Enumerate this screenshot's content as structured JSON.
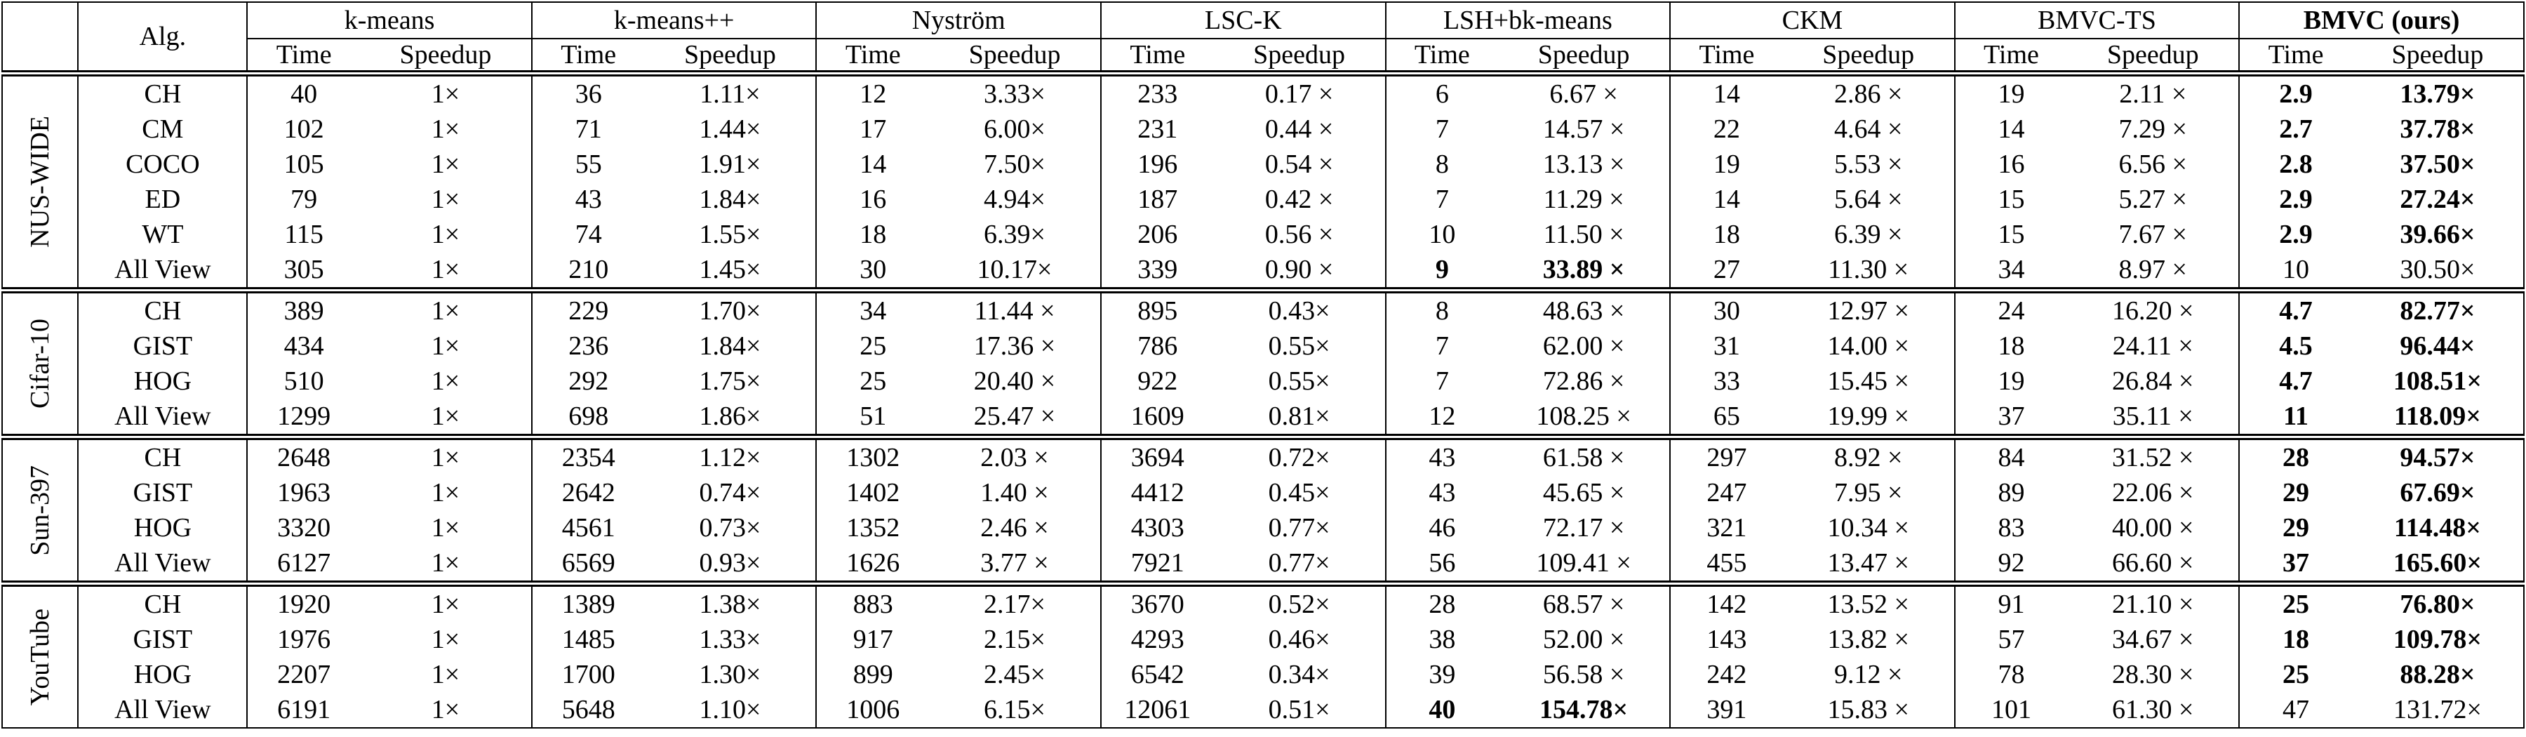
{
  "header": {
    "alg": "Alg.",
    "methods": [
      {
        "name": "k-means",
        "cols": [
          "Time",
          "Speedup"
        ]
      },
      {
        "name": "k-means++",
        "cols": [
          "Time",
          "Speedup"
        ]
      },
      {
        "name": "Nyström",
        "cols": [
          "Time",
          "Speedup"
        ]
      },
      {
        "name": "LSC-K",
        "cols": [
          "Time",
          "Speedup"
        ]
      },
      {
        "name": "LSH+bk-means",
        "cols": [
          "Time",
          "Speedup"
        ]
      },
      {
        "name": "CKM",
        "cols": [
          "Time",
          "Speedup"
        ]
      },
      {
        "name": "BMVC-TS",
        "cols": [
          "Time",
          "Speedup"
        ]
      },
      {
        "name": "BMVC (ours)",
        "cols": [
          "Time",
          "Speedup"
        ]
      }
    ]
  },
  "groups": [
    {
      "name": "NUS-WIDE",
      "rows": [
        [
          "CH",
          40,
          "1×",
          36,
          "1.11×",
          12,
          "3.33×",
          233,
          "0.17 ×",
          6,
          "6.67 ×",
          14,
          "2.86 ×",
          19,
          "2.11 ×",
          2.9,
          "13.79×"
        ],
        [
          "CM",
          102,
          "1×",
          71,
          "1.44×",
          17,
          "6.00×",
          231,
          "0.44 ×",
          7,
          "14.57 ×",
          22,
          "4.64 ×",
          14,
          "7.29 ×",
          2.7,
          "37.78×"
        ],
        [
          "COCO",
          105,
          "1×",
          55,
          "1.91×",
          14,
          "7.50×",
          196,
          "0.54 ×",
          8,
          "13.13 ×",
          19,
          "5.53 ×",
          16,
          "6.56 ×",
          2.8,
          "37.50×"
        ],
        [
          "ED",
          79,
          "1×",
          43,
          "1.84×",
          16,
          "4.94×",
          187,
          "0.42 ×",
          7,
          "11.29 ×",
          14,
          "5.64 ×",
          15,
          "5.27 ×",
          2.9,
          "27.24×"
        ],
        [
          "WT",
          115,
          "1×",
          74,
          "1.55×",
          18,
          "6.39×",
          206,
          "0.56 ×",
          10,
          "11.50 ×",
          18,
          "6.39 ×",
          15,
          "7.67 ×",
          2.9,
          "39.66×"
        ],
        [
          "All View",
          305,
          "1×",
          210,
          "1.45×",
          30,
          "10.17×",
          339,
          "0.90 ×",
          9,
          "33.89 ×",
          27,
          "11.30 ×",
          34,
          "8.97 ×",
          10,
          "30.50×"
        ]
      ]
    },
    {
      "name": "Cifar-10",
      "rows": [
        [
          "CH",
          389,
          "1×",
          229,
          "1.70×",
          34,
          "11.44 ×",
          895,
          "0.43×",
          8,
          "48.63 ×",
          30,
          "12.97 ×",
          24,
          "16.20 ×",
          4.7,
          "82.77×"
        ],
        [
          "GIST",
          434,
          "1×",
          236,
          "1.84×",
          25,
          "17.36 ×",
          786,
          "0.55×",
          7,
          "62.00 ×",
          31,
          "14.00 ×",
          18,
          "24.11 ×",
          4.5,
          "96.44×"
        ],
        [
          "HOG",
          510,
          "1×",
          292,
          "1.75×",
          25,
          "20.40 ×",
          922,
          "0.55×",
          7,
          "72.86 ×",
          33,
          "15.45 ×",
          19,
          "26.84 ×",
          4.7,
          "108.51×"
        ],
        [
          "All View",
          1299,
          "1×",
          698,
          "1.86×",
          51,
          "25.47 ×",
          1609,
          "0.81×",
          12,
          "108.25 ×",
          65,
          "19.99 ×",
          37,
          "35.11 ×",
          11,
          "118.09×"
        ]
      ]
    },
    {
      "name": "Sun-397",
      "rows": [
        [
          "CH",
          2648,
          "1×",
          2354,
          "1.12×",
          1302,
          "2.03 ×",
          3694,
          "0.72×",
          43,
          "61.58 ×",
          297,
          "8.92 ×",
          84,
          "31.52 ×",
          28,
          "94.57×"
        ],
        [
          "GIST",
          1963,
          "1×",
          2642,
          "0.74×",
          1402,
          "1.40 ×",
          4412,
          "0.45×",
          43,
          "45.65 ×",
          247,
          "7.95 ×",
          89,
          "22.06 ×",
          29,
          "67.69×"
        ],
        [
          "HOG",
          3320,
          "1×",
          4561,
          "0.73×",
          1352,
          "2.46 ×",
          4303,
          "0.77×",
          46,
          "72.17 ×",
          321,
          "10.34 ×",
          83,
          "40.00 ×",
          29,
          "114.48×"
        ],
        [
          "All View",
          6127,
          "1×",
          6569,
          "0.93×",
          1626,
          "3.77 ×",
          7921,
          "0.77×",
          56,
          "109.41 ×",
          455,
          "13.47 ×",
          92,
          "66.60 ×",
          37,
          "165.60×"
        ]
      ]
    },
    {
      "name": "YouTube",
      "rows": [
        [
          "CH",
          1920,
          "1×",
          1389,
          "1.38×",
          883,
          "2.17×",
          3670,
          "0.52×",
          28,
          "68.57 ×",
          142,
          "13.52 ×",
          91,
          "21.10 ×",
          25,
          "76.80×"
        ],
        [
          "GIST",
          1976,
          "1×",
          1485,
          "1.33×",
          917,
          "2.15×",
          4293,
          "0.46×",
          38,
          "52.00 ×",
          143,
          "13.82 ×",
          57,
          "34.67 ×",
          18,
          "109.78×"
        ],
        [
          "HOG",
          2207,
          "1×",
          1700,
          "1.30×",
          899,
          "2.45×",
          6542,
          "0.34×",
          39,
          "56.58 ×",
          242,
          "9.12 ×",
          78,
          "28.30 ×",
          25,
          "88.28×"
        ],
        [
          "All View",
          6191,
          "1×",
          5648,
          "1.10×",
          1006,
          "6.15×",
          12061,
          "0.51×",
          40,
          "154.78×",
          391,
          "15.83 ×",
          101,
          "61.30 ×",
          47,
          "131.72×"
        ]
      ]
    }
  ]
}
